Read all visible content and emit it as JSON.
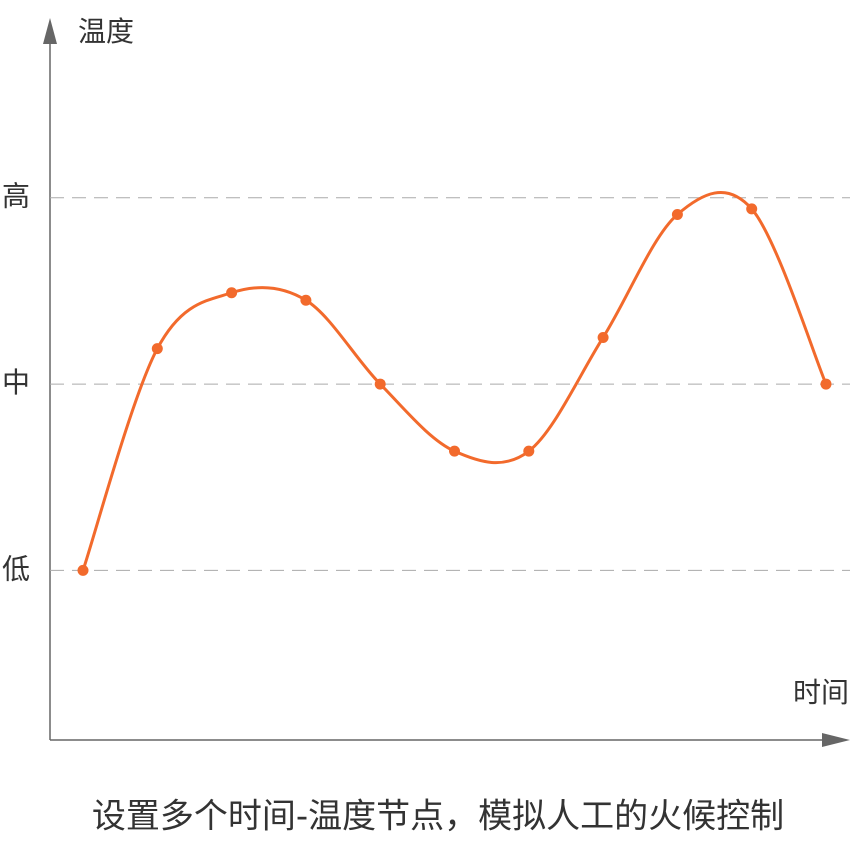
{
  "chart_data": {
    "type": "line",
    "y_label": "温度",
    "x_label": "时间",
    "caption": "设置多个时间-温度节点，模拟人工的火候控制",
    "categories": [
      null,
      null,
      null,
      null,
      null,
      null,
      null,
      null,
      null,
      null,
      null
    ],
    "series": [
      {
        "color": "#f26a2c",
        "values": [
          1,
          2.19,
          2.49,
          2.45,
          2,
          1.64,
          1.64,
          2.25,
          2.91,
          2.94,
          2
        ]
      }
    ],
    "ylim": [
      0.09,
      3.9
    ],
    "yticks": [
      {
        "value": 1,
        "label": "低"
      },
      {
        "value": 2,
        "label": "中"
      },
      {
        "value": 3,
        "label": "高"
      }
    ],
    "grid": true
  }
}
